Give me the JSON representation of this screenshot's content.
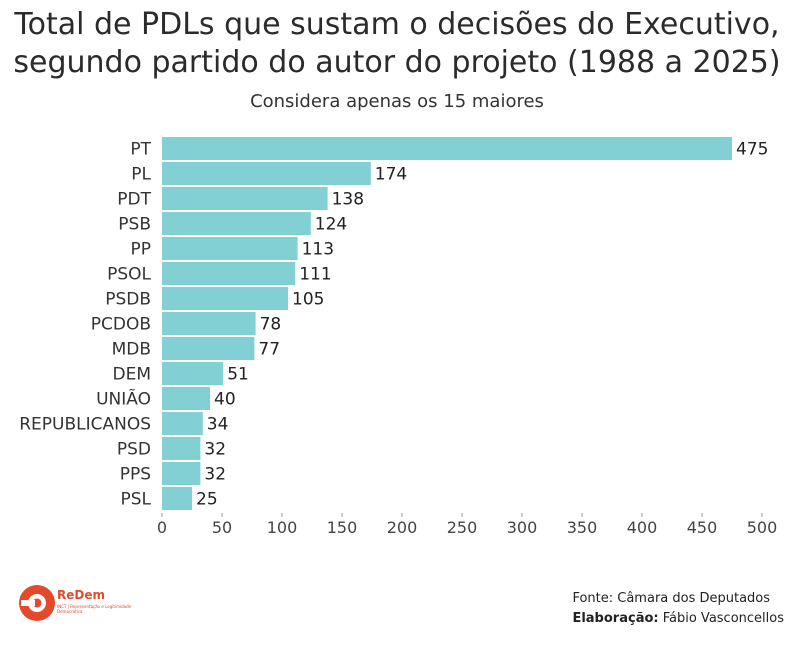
{
  "chart_data": {
    "type": "bar",
    "orientation": "horizontal",
    "title": "Total de PDLs que sustam o decisões do Executivo,\nsegundo partido do autor do projeto (1988 a 2025)",
    "subtitle": "Considera apenas os 15 maiores",
    "categories": [
      "PT",
      "PL",
      "PDT",
      "PSB",
      "PP",
      "PSOL",
      "PSDB",
      "PCDOB",
      "MDB",
      "DEM",
      "UNIÃO",
      "REPUBLICANOS",
      "PSD",
      "PPS",
      "PSL"
    ],
    "values": [
      475,
      174,
      138,
      124,
      113,
      111,
      105,
      78,
      77,
      51,
      40,
      34,
      32,
      32,
      25
    ],
    "xlim": [
      0,
      500
    ],
    "xticks": [
      0,
      50,
      100,
      150,
      200,
      250,
      300,
      350,
      400,
      450,
      500
    ],
    "bar_color": "#82d0d3",
    "grid": false,
    "legend": "none"
  },
  "footer": {
    "source": "Fonte: Câmara dos Deputados",
    "credit_label": "Elaboração:",
    "credit_value": "Fábio Vasconcellos"
  },
  "logo": {
    "name": "ReDem",
    "tagline": "INCT | Representação e Legitimidade Democrática",
    "color": "#e24a2b"
  }
}
